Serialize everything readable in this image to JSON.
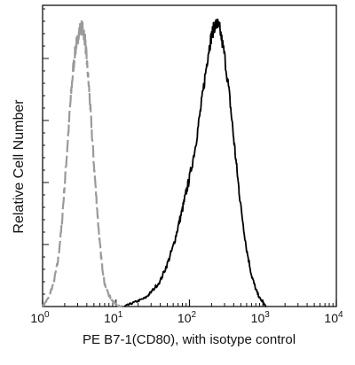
{
  "chart_data": {
    "type": "line",
    "title": "",
    "xlabel": "PE  B7-1(CD80),  with isotype control",
    "ylabel": "Relative Cell Number",
    "x_scale": "log",
    "xlim": [
      1,
      10000
    ],
    "ylim": [
      0,
      1.0
    ],
    "x_tick_labels": [
      {
        "base": "10",
        "exp": "0"
      },
      {
        "base": "10",
        "exp": "1"
      },
      {
        "base": "10",
        "exp": "2"
      },
      {
        "base": "10",
        "exp": "3"
      },
      {
        "base": "10",
        "exp": "4"
      }
    ],
    "x_tick_values": [
      1,
      10,
      100,
      1000,
      10000
    ],
    "grid": false,
    "series": [
      {
        "role": "isotype",
        "color": "#9a9a9a",
        "dashed": true,
        "x": [
          1.0,
          1.2,
          1.4,
          1.6,
          1.8,
          2.0,
          2.2,
          2.4,
          2.6,
          2.8,
          3.0,
          3.2,
          3.4,
          3.6,
          3.8,
          4.0,
          4.3,
          4.6,
          5.0,
          5.5,
          6.0,
          6.5,
          7.0,
          8.0,
          9.0,
          10.0,
          11.0,
          12.0
        ],
        "y": [
          0.0,
          0.03,
          0.08,
          0.15,
          0.27,
          0.43,
          0.58,
          0.72,
          0.83,
          0.9,
          0.94,
          0.97,
          0.98,
          0.965,
          0.93,
          0.86,
          0.76,
          0.64,
          0.5,
          0.35,
          0.22,
          0.14,
          0.08,
          0.04,
          0.02,
          0.01,
          0.0,
          0.0
        ]
      },
      {
        "role": "sample",
        "color": "#000000",
        "dashed": false,
        "x": [
          13,
          16,
          20,
          25,
          30,
          40,
          50,
          60,
          70,
          80,
          90,
          100,
          120,
          140,
          160,
          180,
          200,
          220,
          240,
          260,
          300,
          350,
          400,
          450,
          500,
          600,
          700,
          800,
          900,
          1000,
          1100
        ],
        "y": [
          0.0,
          0.01,
          0.02,
          0.03,
          0.05,
          0.09,
          0.15,
          0.21,
          0.28,
          0.34,
          0.4,
          0.45,
          0.56,
          0.68,
          0.79,
          0.89,
          0.95,
          0.985,
          0.99,
          0.97,
          0.88,
          0.74,
          0.59,
          0.46,
          0.35,
          0.2,
          0.11,
          0.06,
          0.03,
          0.015,
          0.0
        ]
      }
    ]
  }
}
